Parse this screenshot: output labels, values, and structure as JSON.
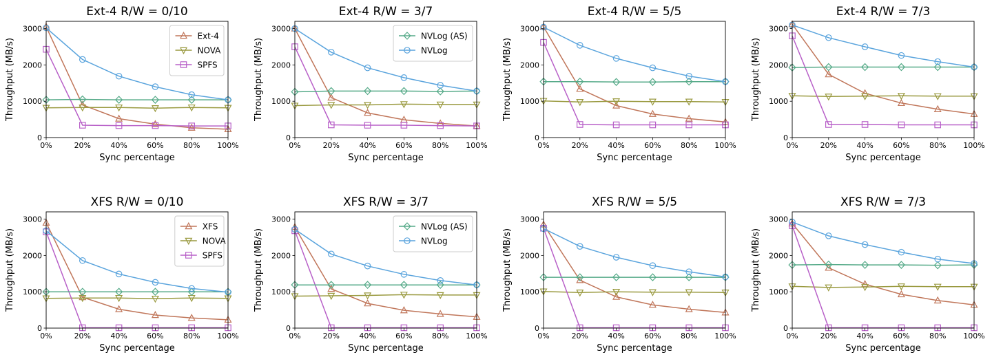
{
  "colors": {
    "ext4": "#c0765a",
    "xfs": "#c0765a",
    "nova": "#9a9a40",
    "spfs": "#b860c8",
    "nvlog_as": "#55aa88",
    "nvlog": "#5aa4dd"
  },
  "chart_data": [
    {
      "type": "line",
      "title": "Ext-4  R/W = 0/10",
      "xlabel": "Sync percentage",
      "ylabel": "Throughput (MB/s)",
      "categories": [
        "0%",
        "20%",
        "40%",
        "60%",
        "80%",
        "100%"
      ],
      "x": [
        0,
        20,
        40,
        60,
        80,
        100
      ],
      "ylim": [
        0,
        3200
      ],
      "yticks": [
        0,
        1000,
        2000,
        3000
      ],
      "legend_loc": "top-right",
      "series": [
        {
          "name": "Ext-4",
          "marker": "triangle-up",
          "color_key": "ext4",
          "legend": true,
          "values": [
            3050,
            900,
            520,
            370,
            270,
            230
          ]
        },
        {
          "name": "NOVA",
          "marker": "triangle-down",
          "color_key": "nova",
          "legend": true,
          "values": [
            820,
            830,
            830,
            810,
            830,
            820
          ]
        },
        {
          "name": "SPFS",
          "marker": "square",
          "color_key": "spfs",
          "legend": true,
          "values": [
            2430,
            340,
            330,
            330,
            320,
            320
          ]
        },
        {
          "name": "NVLog (AS)",
          "marker": "diamond",
          "color_key": "nvlog_as",
          "legend": false,
          "values": [
            1040,
            1050,
            1040,
            1040,
            1040,
            1040
          ]
        },
        {
          "name": "NVLog",
          "marker": "circle",
          "color_key": "nvlog",
          "legend": false,
          "values": [
            3020,
            2150,
            1690,
            1400,
            1180,
            1040
          ]
        }
      ]
    },
    {
      "type": "line",
      "title": "Ext-4  R/W = 3/7",
      "xlabel": "Sync percentage",
      "ylabel": "Throughput (MB/s)",
      "categories": [
        "0%",
        "20%",
        "40%",
        "60%",
        "80%",
        "100%"
      ],
      "x": [
        0,
        20,
        40,
        60,
        80,
        100
      ],
      "ylim": [
        0,
        3200
      ],
      "yticks": [
        0,
        1000,
        2000,
        3000
      ],
      "legend_loc": "top-right",
      "series": [
        {
          "name": "Ext-4",
          "marker": "triangle-up",
          "color_key": "ext4",
          "legend": false,
          "values": [
            3000,
            1100,
            680,
            490,
            390,
            320
          ]
        },
        {
          "name": "NOVA",
          "marker": "triangle-down",
          "color_key": "nova",
          "legend": false,
          "values": [
            880,
            900,
            900,
            920,
            910,
            910
          ]
        },
        {
          "name": "SPFS",
          "marker": "square",
          "color_key": "spfs",
          "legend": false,
          "values": [
            2500,
            350,
            340,
            340,
            330,
            320
          ]
        },
        {
          "name": "NVLog (AS)",
          "marker": "diamond",
          "color_key": "nvlog_as",
          "legend": true,
          "values": [
            1260,
            1280,
            1280,
            1280,
            1270,
            1280
          ]
        },
        {
          "name": "NVLog",
          "marker": "circle",
          "color_key": "nvlog",
          "legend": true,
          "values": [
            3000,
            2350,
            1920,
            1650,
            1440,
            1280
          ]
        }
      ]
    },
    {
      "type": "line",
      "title": "Ext-4  R/W = 5/5",
      "xlabel": "Sync percentage",
      "ylabel": "Throughput (MB/s)",
      "categories": [
        "0%",
        "20%",
        "40%",
        "60%",
        "80%",
        "100%"
      ],
      "x": [
        0,
        20,
        40,
        60,
        80,
        100
      ],
      "ylim": [
        0,
        3200
      ],
      "yticks": [
        0,
        1000,
        2000,
        3000
      ],
      "series": [
        {
          "name": "Ext-4",
          "marker": "triangle-up",
          "color_key": "ext4",
          "legend": false,
          "values": [
            3050,
            1340,
            880,
            650,
            520,
            430
          ]
        },
        {
          "name": "NOVA",
          "marker": "triangle-down",
          "color_key": "nova",
          "legend": false,
          "values": [
            1010,
            980,
            1000,
            990,
            990,
            980
          ]
        },
        {
          "name": "SPFS",
          "marker": "square",
          "color_key": "spfs",
          "legend": false,
          "values": [
            2620,
            360,
            350,
            350,
            350,
            350
          ]
        },
        {
          "name": "NVLog (AS)",
          "marker": "diamond",
          "color_key": "nvlog_as",
          "legend": false,
          "values": [
            1540,
            1540,
            1530,
            1530,
            1540,
            1540
          ]
        },
        {
          "name": "NVLog",
          "marker": "circle",
          "color_key": "nvlog",
          "legend": false,
          "values": [
            3040,
            2540,
            2180,
            1920,
            1690,
            1540
          ]
        }
      ]
    },
    {
      "type": "line",
      "title": "Ext-4  R/W = 7/3",
      "xlabel": "Sync percentage",
      "ylabel": "Throughput (MB/s)",
      "categories": [
        "0%",
        "20%",
        "40%",
        "60%",
        "80%",
        "100%"
      ],
      "x": [
        0,
        20,
        40,
        60,
        80,
        100
      ],
      "ylim": [
        0,
        3200
      ],
      "yticks": [
        0,
        1000,
        2000,
        3000
      ],
      "series": [
        {
          "name": "Ext-4",
          "marker": "triangle-up",
          "color_key": "ext4",
          "legend": false,
          "values": [
            3120,
            1740,
            1220,
            950,
            780,
            650
          ]
        },
        {
          "name": "NOVA",
          "marker": "triangle-down",
          "color_key": "nova",
          "legend": false,
          "values": [
            1150,
            1130,
            1140,
            1150,
            1140,
            1140
          ]
        },
        {
          "name": "SPFS",
          "marker": "square",
          "color_key": "spfs",
          "legend": false,
          "values": [
            2800,
            360,
            360,
            350,
            350,
            350
          ]
        },
        {
          "name": "NVLog (AS)",
          "marker": "diamond",
          "color_key": "nvlog_as",
          "legend": false,
          "values": [
            1930,
            1940,
            1940,
            1940,
            1940,
            1940
          ]
        },
        {
          "name": "NVLog",
          "marker": "circle",
          "color_key": "nvlog",
          "legend": false,
          "values": [
            3100,
            2750,
            2500,
            2260,
            2090,
            1940
          ]
        }
      ]
    },
    {
      "type": "line",
      "title": "XFS  R/W = 0/10",
      "xlabel": "Sync percentage",
      "ylabel": "Throughput (MB/s)",
      "categories": [
        "0%",
        "20%",
        "40%",
        "60%",
        "80%",
        "100%"
      ],
      "x": [
        0,
        20,
        40,
        60,
        80,
        100
      ],
      "ylim": [
        0,
        3200
      ],
      "yticks": [
        0,
        1000,
        2000,
        3000
      ],
      "legend_loc": "top-right",
      "series": [
        {
          "name": "XFS",
          "marker": "triangle-up",
          "color_key": "xfs",
          "legend": true,
          "values": [
            2900,
            850,
            520,
            360,
            280,
            230
          ]
        },
        {
          "name": "NOVA",
          "marker": "triangle-down",
          "color_key": "nova",
          "legend": true,
          "values": [
            820,
            830,
            830,
            810,
            830,
            820
          ]
        },
        {
          "name": "SPFS",
          "marker": "square",
          "color_key": "spfs",
          "legend": true,
          "values": [
            2650,
            10,
            10,
            10,
            10,
            10
          ]
        },
        {
          "name": "NVLog (AS)",
          "marker": "diamond",
          "color_key": "nvlog_as",
          "legend": false,
          "values": [
            1000,
            1000,
            1000,
            1000,
            1000,
            1000
          ]
        },
        {
          "name": "NVLog",
          "marker": "circle",
          "color_key": "nvlog",
          "legend": false,
          "values": [
            2680,
            1860,
            1490,
            1260,
            1090,
            990
          ]
        }
      ]
    },
    {
      "type": "line",
      "title": "XFS  R/W = 3/7",
      "xlabel": "Sync percentage",
      "ylabel": "Throughput (MB/s)",
      "categories": [
        "0%",
        "20%",
        "40%",
        "60%",
        "80%",
        "100%"
      ],
      "x": [
        0,
        20,
        40,
        60,
        80,
        100
      ],
      "ylim": [
        0,
        3200
      ],
      "yticks": [
        0,
        1000,
        2000,
        3000
      ],
      "legend_loc": "top-right",
      "series": [
        {
          "name": "XFS",
          "marker": "triangle-up",
          "color_key": "xfs",
          "legend": false,
          "values": [
            2780,
            1080,
            680,
            490,
            390,
            310
          ]
        },
        {
          "name": "NOVA",
          "marker": "triangle-down",
          "color_key": "nova",
          "legend": false,
          "values": [
            880,
            890,
            900,
            920,
            910,
            910
          ]
        },
        {
          "name": "SPFS",
          "marker": "square",
          "color_key": "spfs",
          "legend": false,
          "values": [
            2680,
            10,
            10,
            10,
            10,
            10
          ]
        },
        {
          "name": "NVLog (AS)",
          "marker": "diamond",
          "color_key": "nvlog_as",
          "legend": true,
          "values": [
            1190,
            1190,
            1190,
            1190,
            1190,
            1190
          ]
        },
        {
          "name": "NVLog",
          "marker": "circle",
          "color_key": "nvlog",
          "legend": true,
          "values": [
            2720,
            2040,
            1710,
            1480,
            1310,
            1190
          ]
        }
      ]
    },
    {
      "type": "line",
      "title": "XFS  R/W = 5/5",
      "xlabel": "Sync percentage",
      "ylabel": "Throughput (MB/s)",
      "categories": [
        "0%",
        "20%",
        "40%",
        "60%",
        "80%",
        "100%"
      ],
      "x": [
        0,
        20,
        40,
        60,
        80,
        100
      ],
      "ylim": [
        0,
        3200
      ],
      "yticks": [
        0,
        1000,
        2000,
        3000
      ],
      "series": [
        {
          "name": "XFS",
          "marker": "triangle-up",
          "color_key": "xfs",
          "legend": false,
          "values": [
            2850,
            1320,
            860,
            640,
            520,
            430
          ]
        },
        {
          "name": "NOVA",
          "marker": "triangle-down",
          "color_key": "nova",
          "legend": false,
          "values": [
            1010,
            980,
            1000,
            990,
            990,
            980
          ]
        },
        {
          "name": "SPFS",
          "marker": "square",
          "color_key": "spfs",
          "legend": false,
          "values": [
            2750,
            10,
            10,
            10,
            10,
            10
          ]
        },
        {
          "name": "NVLog (AS)",
          "marker": "diamond",
          "color_key": "nvlog_as",
          "legend": false,
          "values": [
            1400,
            1400,
            1400,
            1400,
            1400,
            1400
          ]
        },
        {
          "name": "NVLog",
          "marker": "circle",
          "color_key": "nvlog",
          "legend": false,
          "values": [
            2740,
            2250,
            1950,
            1720,
            1550,
            1410
          ]
        }
      ]
    },
    {
      "type": "line",
      "title": "XFS  R/W = 7/3",
      "xlabel": "Sync percentage",
      "ylabel": "Throughput (MB/s)",
      "categories": [
        "0%",
        "20%",
        "40%",
        "60%",
        "80%",
        "100%"
      ],
      "x": [
        0,
        20,
        40,
        60,
        80,
        100
      ],
      "ylim": [
        0,
        3200
      ],
      "yticks": [
        0,
        1000,
        2000,
        3000
      ],
      "series": [
        {
          "name": "XFS",
          "marker": "triangle-up",
          "color_key": "xfs",
          "legend": false,
          "values": [
            2880,
            1660,
            1210,
            930,
            760,
            640
          ]
        },
        {
          "name": "NOVA",
          "marker": "triangle-down",
          "color_key": "nova",
          "legend": false,
          "values": [
            1150,
            1120,
            1130,
            1150,
            1140,
            1140
          ]
        },
        {
          "name": "SPFS",
          "marker": "square",
          "color_key": "spfs",
          "legend": false,
          "values": [
            2820,
            10,
            10,
            10,
            10,
            10
          ]
        },
        {
          "name": "NVLog (AS)",
          "marker": "diamond",
          "color_key": "nvlog_as",
          "legend": false,
          "values": [
            1740,
            1750,
            1740,
            1740,
            1730,
            1740
          ]
        },
        {
          "name": "NVLog",
          "marker": "circle",
          "color_key": "nvlog",
          "legend": false,
          "values": [
            2920,
            2540,
            2300,
            2090,
            1900,
            1780
          ]
        }
      ]
    }
  ]
}
